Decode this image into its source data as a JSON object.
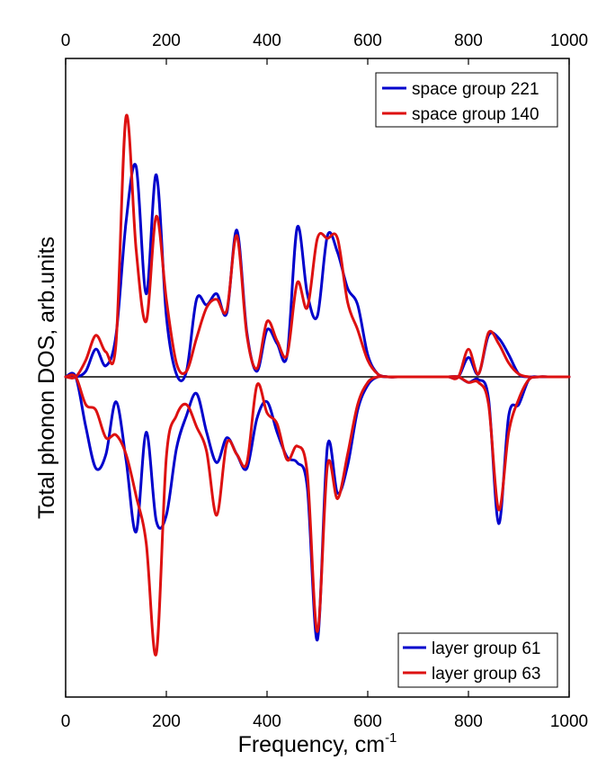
{
  "chart_data": {
    "type": "line",
    "xlabel": "Frequency, cm",
    "xlabel_superscript": "-1",
    "ylabel": "Total phonon DOS, arb.units",
    "xlim": [
      0,
      1000
    ],
    "ylim": [
      -1.15,
      1.15
    ],
    "x_ticks": [
      "0",
      "200",
      "400",
      "600",
      "800",
      "1000"
    ],
    "grid": false,
    "x_grid": [
      0,
      20,
      40,
      60,
      80,
      100,
      120,
      140,
      160,
      180,
      200,
      220,
      240,
      260,
      280,
      300,
      320,
      340,
      360,
      380,
      400,
      420,
      440,
      460,
      480,
      500,
      520,
      540,
      560,
      580,
      600,
      620,
      640,
      660,
      680,
      700,
      720,
      740,
      760,
      780,
      800,
      820,
      840,
      860,
      880,
      900,
      920,
      940,
      960,
      980,
      1000
    ],
    "upper_panel": {
      "legend_position": "top-right",
      "series": [
        {
          "name": "space group 221",
          "color": "#0000cc",
          "values": [
            0,
            0,
            0.02,
            0.1,
            0.04,
            0.15,
            0.56,
            0.76,
            0.3,
            0.73,
            0.22,
            0.01,
            0.02,
            0.28,
            0.26,
            0.3,
            0.23,
            0.53,
            0.16,
            0.02,
            0.17,
            0.12,
            0.08,
            0.54,
            0.3,
            0.22,
            0.51,
            0.45,
            0.32,
            0.26,
            0.08,
            0.01,
            0,
            0,
            0,
            0,
            0,
            0,
            0,
            0,
            0.07,
            0.01,
            0.15,
            0.14,
            0.08,
            0.01,
            0,
            0,
            0,
            0,
            0
          ]
        },
        {
          "name": "space group 140",
          "color": "#dd1111",
          "values": [
            0,
            0,
            0.06,
            0.15,
            0.09,
            0.12,
            0.94,
            0.46,
            0.2,
            0.58,
            0.28,
            0.05,
            0.02,
            0.14,
            0.25,
            0.28,
            0.24,
            0.51,
            0.15,
            0.03,
            0.2,
            0.13,
            0.08,
            0.34,
            0.25,
            0.5,
            0.5,
            0.5,
            0.27,
            0.17,
            0.06,
            0.01,
            0,
            0,
            0,
            0,
            0,
            0,
            0,
            0,
            0.1,
            0.01,
            0.16,
            0.12,
            0.05,
            0.01,
            0,
            0,
            0,
            0,
            0
          ]
        }
      ]
    },
    "lower_panel": {
      "legend_position": "bottom-right",
      "series": [
        {
          "name": "layer group 61",
          "color": "#0000cc",
          "values": [
            0,
            0,
            -0.18,
            -0.33,
            -0.28,
            -0.09,
            -0.3,
            -0.56,
            -0.2,
            -0.52,
            -0.5,
            -0.26,
            -0.14,
            -0.06,
            -0.2,
            -0.31,
            -0.22,
            -0.28,
            -0.33,
            -0.15,
            -0.09,
            -0.2,
            -0.29,
            -0.31,
            -0.4,
            -0.95,
            -0.25,
            -0.42,
            -0.32,
            -0.12,
            -0.03,
            0,
            0,
            0,
            0,
            0,
            0,
            0,
            0,
            0,
            -0.02,
            -0.01,
            -0.08,
            -0.53,
            -0.14,
            -0.1,
            -0.01,
            0,
            0,
            0,
            0
          ]
        },
        {
          "name": "layer group 63",
          "color": "#dd1111",
          "values": [
            0,
            0,
            -0.1,
            -0.12,
            -0.22,
            -0.21,
            -0.28,
            -0.43,
            -0.6,
            -1.0,
            -0.29,
            -0.14,
            -0.1,
            -0.18,
            -0.27,
            -0.5,
            -0.24,
            -0.28,
            -0.31,
            -0.03,
            -0.13,
            -0.17,
            -0.3,
            -0.25,
            -0.35,
            -0.92,
            -0.32,
            -0.44,
            -0.28,
            -0.1,
            -0.02,
            0,
            0,
            0,
            0,
            0,
            0,
            0,
            0,
            0,
            -0.02,
            -0.02,
            -0.1,
            -0.48,
            -0.2,
            -0.08,
            -0.01,
            0,
            0,
            0,
            0
          ]
        }
      ]
    }
  }
}
